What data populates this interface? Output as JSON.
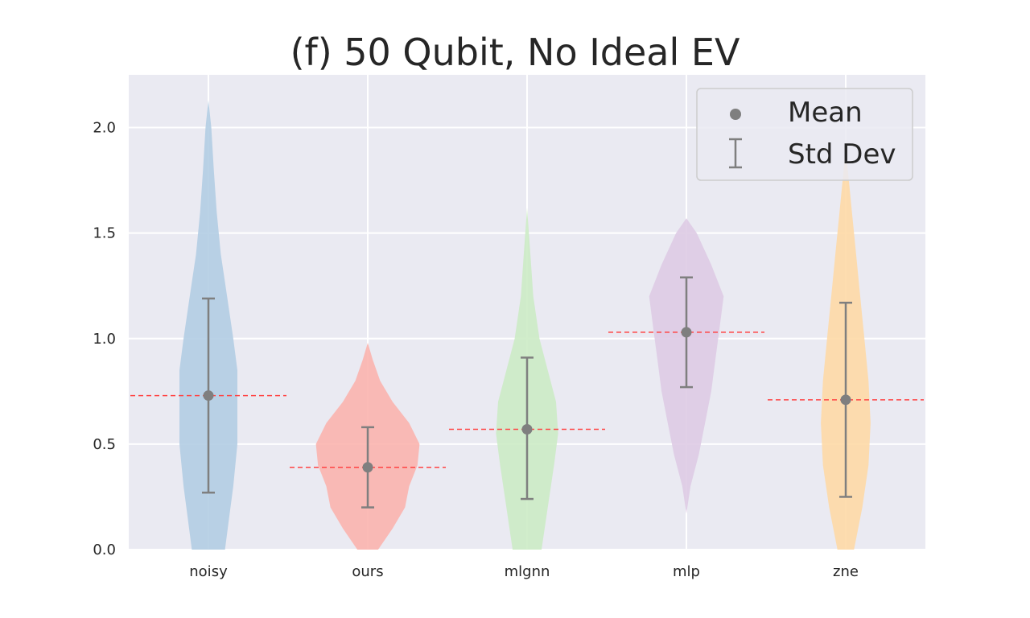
{
  "chart_data": {
    "type": "violin",
    "title": "(f) 50 Qubit, No Ideal EV",
    "xlabel": "",
    "ylabel": "",
    "categories": [
      "noisy",
      "ours",
      "mlgnn",
      "mlp",
      "zne"
    ],
    "ylim": [
      0.0,
      2.25
    ],
    "yticks": [
      0.0,
      0.5,
      1.0,
      1.5,
      2.0
    ],
    "ytick_labels": [
      "0.0",
      "0.5",
      "1.0",
      "1.5",
      "2.0"
    ],
    "grid": true,
    "legend": {
      "position": "top-right",
      "entries": [
        "Mean",
        "Std Dev"
      ]
    },
    "colors": {
      "noisy": "#b3cde3",
      "ours": "#fbb4ae",
      "mlgnn": "#ccebc5",
      "mlp": "#decbe4",
      "zne": "#fed9a6",
      "marker": "#7f7f7f",
      "mean_line": "#ff4444",
      "background": "#eaeaf2"
    },
    "series": [
      {
        "category": "noisy",
        "mean": 0.73,
        "std_low": 0.27,
        "std_high": 1.19,
        "profile": [
          [
            0.0,
            0.04
          ],
          [
            0.15,
            0.05
          ],
          [
            0.3,
            0.06
          ],
          [
            0.5,
            0.07
          ],
          [
            0.7,
            0.07
          ],
          [
            0.85,
            0.07
          ],
          [
            1.0,
            0.06
          ],
          [
            1.2,
            0.045
          ],
          [
            1.4,
            0.03
          ],
          [
            1.6,
            0.02
          ],
          [
            1.8,
            0.013
          ],
          [
            2.0,
            0.007
          ],
          [
            2.13,
            0.0
          ]
        ]
      },
      {
        "category": "ours",
        "mean": 0.39,
        "std_low": 0.2,
        "std_high": 0.58,
        "profile": [
          [
            0.0,
            0.025
          ],
          [
            0.1,
            0.06
          ],
          [
            0.2,
            0.09
          ],
          [
            0.3,
            0.1
          ],
          [
            0.4,
            0.12
          ],
          [
            0.5,
            0.125
          ],
          [
            0.6,
            0.1
          ],
          [
            0.7,
            0.06
          ],
          [
            0.8,
            0.03
          ],
          [
            0.9,
            0.012
          ],
          [
            0.98,
            0.0
          ]
        ]
      },
      {
        "category": "mlgnn",
        "mean": 0.57,
        "std_low": 0.24,
        "std_high": 0.91,
        "profile": [
          [
            0.0,
            0.035
          ],
          [
            0.2,
            0.05
          ],
          [
            0.4,
            0.065
          ],
          [
            0.55,
            0.075
          ],
          [
            0.7,
            0.07
          ],
          [
            0.85,
            0.05
          ],
          [
            1.0,
            0.03
          ],
          [
            1.2,
            0.015
          ],
          [
            1.4,
            0.008
          ],
          [
            1.62,
            0.0
          ]
        ]
      },
      {
        "category": "mlp",
        "mean": 1.03,
        "std_low": 0.77,
        "std_high": 1.29,
        "profile": [
          [
            0.17,
            0.0
          ],
          [
            0.3,
            0.01
          ],
          [
            0.45,
            0.03
          ],
          [
            0.6,
            0.045
          ],
          [
            0.75,
            0.06
          ],
          [
            0.9,
            0.07
          ],
          [
            1.05,
            0.08
          ],
          [
            1.2,
            0.09
          ],
          [
            1.35,
            0.06
          ],
          [
            1.5,
            0.025
          ],
          [
            1.57,
            0.0
          ]
        ]
      },
      {
        "category": "zne",
        "mean": 0.71,
        "std_low": 0.25,
        "std_high": 1.17,
        "profile": [
          [
            0.0,
            0.02
          ],
          [
            0.2,
            0.04
          ],
          [
            0.4,
            0.055
          ],
          [
            0.6,
            0.06
          ],
          [
            0.8,
            0.055
          ],
          [
            1.0,
            0.045
          ],
          [
            1.2,
            0.035
          ],
          [
            1.4,
            0.025
          ],
          [
            1.6,
            0.015
          ],
          [
            1.8,
            0.005
          ],
          [
            1.9,
            0.0
          ]
        ]
      }
    ]
  }
}
